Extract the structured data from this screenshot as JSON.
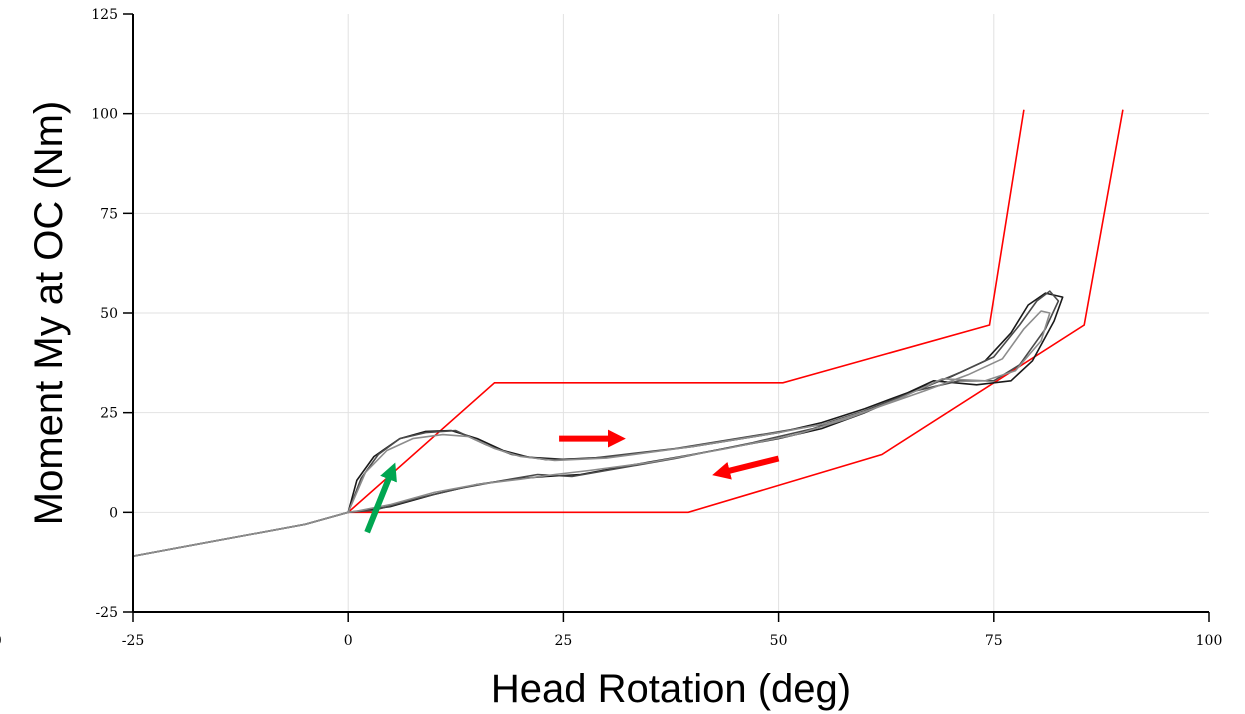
{
  "chart_data": {
    "type": "line",
    "title": "",
    "xlabel": "Head Rotation (deg)",
    "ylabel": "Moment My at OC (Nm)",
    "xlim": [
      -25,
      100
    ],
    "ylim": [
      -25,
      125
    ],
    "xticks": [
      -25,
      0,
      25,
      50,
      75,
      100
    ],
    "yticks": [
      -25,
      0,
      25,
      50,
      75,
      100,
      125
    ],
    "clipped_tick_label": "100",
    "grid": true,
    "colors": {
      "corridor": "#ff0000",
      "trace_dark": "#1a1a1a",
      "trace_mid": "#4a4a4a",
      "trace_light": "#8c8c8c",
      "arrow_red": "#ff0000",
      "arrow_green": "#00a651"
    },
    "corridor_upper": [
      [
        0,
        0
      ],
      [
        17,
        32.5
      ],
      [
        50.5,
        32.5
      ],
      [
        74.5,
        47
      ],
      [
        78.5,
        101
      ]
    ],
    "corridor_lower": [
      [
        0,
        0
      ],
      [
        39.5,
        0
      ],
      [
        62,
        14.5
      ],
      [
        85.5,
        47
      ],
      [
        90,
        101
      ]
    ],
    "series": [
      {
        "color_key": "trace_dark",
        "points": [
          [
            -25,
            -11
          ],
          [
            -20,
            -9
          ],
          [
            -15,
            -7
          ],
          [
            -10,
            -5
          ],
          [
            -5,
            -3
          ],
          [
            0,
            0
          ],
          [
            1,
            8
          ],
          [
            3,
            14
          ],
          [
            6,
            18.5
          ],
          [
            9,
            20.3
          ],
          [
            12,
            20.5
          ],
          [
            15,
            18.5
          ],
          [
            18,
            15.5
          ],
          [
            21,
            13.8
          ],
          [
            25,
            13.3
          ],
          [
            30,
            13.8
          ],
          [
            40,
            16.5
          ],
          [
            50,
            20
          ],
          [
            55,
            22.5
          ],
          [
            60,
            26
          ],
          [
            65,
            30
          ],
          [
            70,
            34
          ],
          [
            74,
            38
          ],
          [
            77,
            45
          ],
          [
            79,
            52
          ],
          [
            81,
            55
          ],
          [
            83,
            54
          ],
          [
            82,
            48
          ],
          [
            79.5,
            38
          ],
          [
            77,
            33
          ],
          [
            73,
            32
          ],
          [
            68,
            33
          ],
          [
            64,
            29
          ],
          [
            60,
            25
          ],
          [
            55,
            21
          ],
          [
            50,
            18.5
          ],
          [
            40,
            14.5
          ],
          [
            32,
            11.5
          ],
          [
            27,
            9.5
          ],
          [
            23,
            9
          ],
          [
            20,
            8.5
          ],
          [
            15,
            7
          ],
          [
            10,
            4.5
          ],
          [
            5,
            1.5
          ],
          [
            2,
            0.5
          ],
          [
            0,
            0
          ]
        ]
      },
      {
        "color_key": "trace_mid",
        "points": [
          [
            -25,
            -11
          ],
          [
            -20,
            -9
          ],
          [
            -15,
            -7
          ],
          [
            -10,
            -5
          ],
          [
            -5,
            -3
          ],
          [
            0,
            0
          ],
          [
            1.5,
            8.5
          ],
          [
            3.5,
            14.5
          ],
          [
            6,
            18.5
          ],
          [
            9,
            20
          ],
          [
            12.5,
            20.5
          ],
          [
            16,
            17
          ],
          [
            19,
            14.5
          ],
          [
            23,
            13.2
          ],
          [
            28,
            13.5
          ],
          [
            38,
            16
          ],
          [
            48,
            19.5
          ],
          [
            55,
            22
          ],
          [
            60,
            25.5
          ],
          [
            66,
            30.5
          ],
          [
            71,
            35
          ],
          [
            75,
            39
          ],
          [
            78,
            47
          ],
          [
            80,
            53
          ],
          [
            81.5,
            55.5
          ],
          [
            82.5,
            53
          ],
          [
            81,
            46
          ],
          [
            78,
            37
          ],
          [
            75,
            33
          ],
          [
            71,
            33
          ],
          [
            66,
            30.5
          ],
          [
            60,
            25
          ],
          [
            54,
            21
          ],
          [
            47,
            17.5
          ],
          [
            38,
            13.5
          ],
          [
            30,
            10.5
          ],
          [
            26,
            9
          ],
          [
            22,
            9.5
          ],
          [
            18,
            8
          ],
          [
            13,
            6
          ],
          [
            8,
            3.5
          ],
          [
            3,
            0.5
          ],
          [
            0,
            0
          ]
        ]
      },
      {
        "color_key": "trace_light",
        "points": [
          [
            -25,
            -11
          ],
          [
            -20,
            -9
          ],
          [
            -15,
            -7
          ],
          [
            -10,
            -5
          ],
          [
            -5,
            -3
          ],
          [
            0,
            0
          ],
          [
            2,
            10
          ],
          [
            4.5,
            15.5
          ],
          [
            7.5,
            18.5
          ],
          [
            11,
            19.5
          ],
          [
            14,
            19
          ],
          [
            17,
            16
          ],
          [
            20,
            14
          ],
          [
            24,
            13
          ],
          [
            30,
            13.6
          ],
          [
            40,
            16.5
          ],
          [
            50,
            20
          ],
          [
            56,
            22.5
          ],
          [
            61,
            26
          ],
          [
            67,
            30.5
          ],
          [
            72,
            34.5
          ],
          [
            76,
            38.5
          ],
          [
            78.5,
            46
          ],
          [
            80.5,
            50.5
          ],
          [
            81.5,
            50
          ],
          [
            80.5,
            43
          ],
          [
            77.5,
            35.5
          ],
          [
            74,
            33
          ],
          [
            69,
            33.5
          ],
          [
            64,
            28.5
          ],
          [
            58,
            23.5
          ],
          [
            52,
            19.5
          ],
          [
            44,
            16
          ],
          [
            35,
            12.5
          ],
          [
            28,
            10.5
          ],
          [
            24,
            9.5
          ],
          [
            20,
            8.3
          ],
          [
            15,
            7
          ],
          [
            10,
            5
          ],
          [
            5,
            2
          ],
          [
            1,
            0.3
          ],
          [
            0,
            0
          ]
        ]
      }
    ],
    "arrows": [
      {
        "color_key": "arrow_red",
        "from": [
          24.5,
          18.5
        ],
        "to": [
          31,
          18.5
        ]
      },
      {
        "color_key": "arrow_red",
        "from": [
          50,
          13.5
        ],
        "to": [
          43.5,
          10
        ]
      },
      {
        "color_key": "arrow_green",
        "from": [
          2.2,
          -5
        ],
        "to": [
          5,
          10
        ]
      }
    ]
  }
}
